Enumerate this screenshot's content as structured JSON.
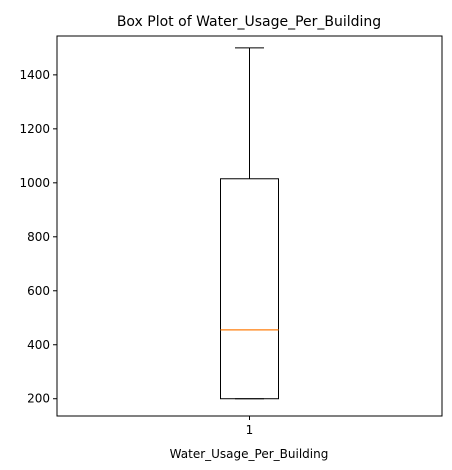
{
  "chart_data": {
    "type": "box",
    "title": "Box Plot of Water_Usage_Per_Building",
    "xlabel": "Water_Usage_Per_Building",
    "ylabel": "",
    "categories": [
      "1"
    ],
    "ylim": [
      136,
      1544
    ],
    "yticks": [
      200,
      400,
      600,
      800,
      1000,
      1200,
      1400
    ],
    "ytick_labels": [
      "200",
      "400",
      "600",
      "800",
      "1000",
      "1200",
      "1400"
    ],
    "grid": false,
    "boxes": [
      {
        "name": "1",
        "whisker_low": 200,
        "q1": 200,
        "median": 455,
        "q3": 1015,
        "whisker_high": 1500
      }
    ],
    "colors": {
      "box": "#000000",
      "median": "#ff7f0e"
    }
  }
}
